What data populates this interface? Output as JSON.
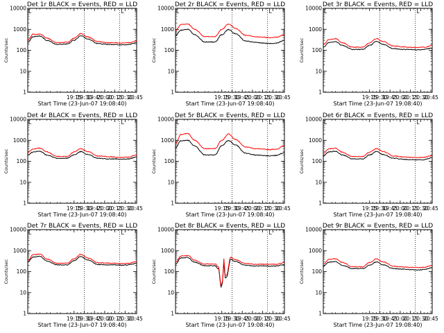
{
  "chart_data": [
    {
      "type": "line",
      "title": "Det 1r BLACK = Events, RED = LLD",
      "xlabel": "Start Time (23-Jun-07 19:08:40)",
      "ylabel": "Counts/sec",
      "yscale": "log",
      "ylim": [
        1,
        10000
      ],
      "xlim": [
        "18:07",
        "20:47"
      ],
      "xticks": [
        "19:15",
        "19:30",
        "19:45",
        "20:00",
        "20:15",
        "20:30",
        "20:45"
      ],
      "yticks": [
        "1",
        "10",
        "100",
        "1000",
        "10000"
      ],
      "vlines": [
        "19:30",
        "20:22"
      ],
      "annotations": [
        "L"
      ],
      "x": [
        "18:07",
        "18:15",
        "18:25",
        "18:35",
        "18:50",
        "19:05",
        "19:15",
        "19:25",
        "19:35",
        "19:50",
        "20:05",
        "20:15",
        "20:25",
        "20:35",
        "20:47"
      ],
      "series": [
        {
          "color": "#000000",
          "values": [
            240,
            450,
            480,
            300,
            190,
            200,
            300,
            490,
            350,
            210,
            190,
            190,
            180,
            190,
            230
          ]
        },
        {
          "color": "#ff0000",
          "values": [
            300,
            580,
            600,
            380,
            230,
            240,
            380,
            620,
            440,
            260,
            230,
            230,
            220,
            230,
            280
          ]
        }
      ]
    },
    {
      "type": "line",
      "title": "Det 2r BLACK = Events, RED = LLD",
      "xlabel": "Start Time (23-Jun-07 19:08:40)",
      "ylabel": "Counts/sec",
      "yscale": "log",
      "ylim": [
        1,
        10000
      ],
      "xlim": [
        "18:07",
        "20:47"
      ],
      "xticks": [
        "19:15",
        "19:30",
        "19:45",
        "20:00",
        "20:15",
        "20:30",
        "20:45"
      ],
      "yticks": [
        "1",
        "10",
        "100",
        "1000",
        "10000"
      ],
      "vlines": [
        "19:30",
        "20:22"
      ],
      "annotations": [
        "L"
      ],
      "x": [
        "18:07",
        "18:15",
        "18:25",
        "18:35",
        "18:50",
        "19:05",
        "19:15",
        "19:25",
        "19:35",
        "19:50",
        "20:05",
        "20:15",
        "20:25",
        "20:35",
        "20:47"
      ],
      "series": [
        {
          "color": "#000000",
          "values": [
            500,
            900,
            1000,
            560,
            250,
            250,
            560,
            980,
            620,
            280,
            240,
            220,
            210,
            220,
            300
          ]
        },
        {
          "color": "#ff0000",
          "values": [
            850,
            1700,
            1800,
            1000,
            450,
            450,
            1000,
            1800,
            1100,
            520,
            440,
            420,
            400,
            420,
            560
          ]
        }
      ]
    },
    {
      "type": "line",
      "title": "Det 3r BLACK = Events, RED = LLD",
      "xlabel": "Start Time (23-Jun-07 19:08:40)",
      "ylabel": "Counts/sec",
      "yscale": "log",
      "ylim": [
        1,
        10000
      ],
      "xlim": [
        "18:07",
        "20:47"
      ],
      "xticks": [
        "19:15",
        "19:30",
        "19:45",
        "20:00",
        "20:15",
        "20:30",
        "20:45"
      ],
      "yticks": [
        "1",
        "10",
        "100",
        "1000",
        "10000"
      ],
      "vlines": [
        "19:30",
        "20:22"
      ],
      "annotations": [
        "L"
      ],
      "x": [
        "18:07",
        "18:15",
        "18:25",
        "18:35",
        "18:50",
        "19:05",
        "19:15",
        "19:25",
        "19:35",
        "19:50",
        "20:05",
        "20:15",
        "20:25",
        "20:35",
        "20:47"
      ],
      "series": [
        {
          "color": "#000000",
          "values": [
            140,
            230,
            260,
            170,
            110,
            110,
            170,
            260,
            190,
            120,
            110,
            110,
            105,
            110,
            130
          ]
        },
        {
          "color": "#ff0000",
          "values": [
            190,
            320,
            360,
            230,
            140,
            140,
            230,
            360,
            260,
            160,
            145,
            140,
            135,
            140,
            170
          ]
        }
      ]
    },
    {
      "type": "line",
      "title": "Det 4r BLACK = Events, RED = LLD",
      "xlabel": "Start Time (23-Jun-07 19:08:40)",
      "ylabel": "Counts/sec",
      "yscale": "log",
      "ylim": [
        1,
        10000
      ],
      "xlim": [
        "18:07",
        "20:47"
      ],
      "xticks": [
        "19:15",
        "19:30",
        "19:45",
        "20:00",
        "20:15",
        "20:30",
        "20:45"
      ],
      "yticks": [
        "1",
        "10",
        "100",
        "1000",
        "10000"
      ],
      "vlines": [
        "19:30",
        "20:22"
      ],
      "annotations": [
        "L"
      ],
      "x": [
        "18:07",
        "18:15",
        "18:25",
        "18:35",
        "18:50",
        "19:05",
        "19:15",
        "19:25",
        "19:35",
        "19:50",
        "20:05",
        "20:15",
        "20:25",
        "20:35",
        "20:47"
      ],
      "series": [
        {
          "color": "#000000",
          "values": [
            200,
            280,
            300,
            200,
            140,
            140,
            200,
            290,
            210,
            140,
            130,
            130,
            125,
            130,
            160
          ]
        },
        {
          "color": "#ff0000",
          "values": [
            260,
            390,
            420,
            280,
            170,
            170,
            280,
            400,
            290,
            180,
            165,
            160,
            155,
            160,
            200
          ]
        }
      ]
    },
    {
      "type": "line",
      "title": "Det 5r BLACK = Events, RED = LLD",
      "xlabel": "Start Time (23-Jun-07 19:08:40)",
      "ylabel": "Counts/sec",
      "yscale": "log",
      "ylim": [
        1,
        10000
      ],
      "xlim": [
        "18:07",
        "20:47"
      ],
      "xticks": [
        "19:15",
        "19:30",
        "19:45",
        "20:00",
        "20:15",
        "20:30",
        "20:45"
      ],
      "yticks": [
        "1",
        "10",
        "100",
        "1000",
        "10000"
      ],
      "vlines": [
        "19:30",
        "20:22"
      ],
      "annotations": [
        "L"
      ],
      "x": [
        "18:07",
        "18:15",
        "18:25",
        "18:35",
        "18:50",
        "19:05",
        "19:15",
        "19:25",
        "19:35",
        "19:50",
        "20:05",
        "20:15",
        "20:25",
        "20:35",
        "20:47"
      ],
      "series": [
        {
          "color": "#000000",
          "values": [
            450,
            950,
            1000,
            550,
            200,
            200,
            550,
            980,
            600,
            240,
            200,
            190,
            180,
            190,
            260
          ]
        },
        {
          "color": "#ff0000",
          "values": [
            700,
            1900,
            2100,
            1000,
            400,
            400,
            1000,
            2000,
            1100,
            480,
            400,
            380,
            360,
            380,
            560
          ]
        }
      ]
    },
    {
      "type": "line",
      "title": "Det 6r BLACK = Events, RED = LLD",
      "xlabel": "Start Time (23-Jun-07 19:08:40)",
      "ylabel": "Counts/sec",
      "yscale": "log",
      "ylim": [
        1,
        10000
      ],
      "xlim": [
        "18:07",
        "20:47"
      ],
      "xticks": [
        "19:15",
        "19:30",
        "19:45",
        "20:00",
        "20:15",
        "20:30",
        "20:45"
      ],
      "yticks": [
        "1",
        "10",
        "100",
        "1000",
        "10000"
      ],
      "vlines": [
        "19:30",
        "20:22"
      ],
      "annotations": [
        "L"
      ],
      "x": [
        "18:07",
        "18:15",
        "18:25",
        "18:35",
        "18:50",
        "19:05",
        "19:15",
        "19:25",
        "19:35",
        "19:50",
        "20:05",
        "20:15",
        "20:25",
        "20:35",
        "20:47"
      ],
      "series": [
        {
          "color": "#000000",
          "values": [
            180,
            280,
            300,
            200,
            130,
            130,
            200,
            290,
            210,
            140,
            125,
            120,
            118,
            120,
            150
          ]
        },
        {
          "color": "#ff0000",
          "values": [
            240,
            390,
            420,
            270,
            170,
            170,
            270,
            400,
            290,
            180,
            160,
            155,
            150,
            155,
            190
          ]
        }
      ]
    },
    {
      "type": "line",
      "title": "Det 7r BLACK = Events, RED = LLD",
      "xlabel": "Start Time (23-Jun-07 19:08:40)",
      "ylabel": "Counts/sec",
      "yscale": "log",
      "ylim": [
        1,
        10000
      ],
      "xlim": [
        "18:07",
        "20:47"
      ],
      "xticks": [
        "19:15",
        "19:30",
        "19:45",
        "20:00",
        "20:15",
        "20:30",
        "20:45"
      ],
      "yticks": [
        "1",
        "10",
        "100",
        "1000",
        "10000"
      ],
      "vlines": [
        "19:30",
        "20:22"
      ],
      "annotations": [
        "L"
      ],
      "x": [
        "18:07",
        "18:15",
        "18:25",
        "18:35",
        "18:50",
        "19:05",
        "19:15",
        "19:25",
        "19:35",
        "19:50",
        "20:05",
        "20:15",
        "20:25",
        "20:35",
        "20:47"
      ],
      "series": [
        {
          "color": "#000000",
          "values": [
            280,
            500,
            530,
            320,
            210,
            210,
            330,
            520,
            360,
            220,
            210,
            210,
            200,
            210,
            250
          ]
        },
        {
          "color": "#ff0000",
          "values": [
            340,
            640,
            680,
            400,
            250,
            250,
            410,
            660,
            450,
            270,
            255,
            250,
            240,
            250,
            300
          ]
        }
      ]
    },
    {
      "type": "line",
      "title": "Det 8r BLACK = Events, RED = LLD",
      "xlabel": "Start Time (23-Jun-07 19:08:40)",
      "ylabel": "Counts/sec",
      "yscale": "log",
      "ylim": [
        1,
        10000
      ],
      "xlim": [
        "18:07",
        "20:47"
      ],
      "xticks": [
        "19:15",
        "19:30",
        "19:45",
        "20:00",
        "20:15",
        "20:30",
        "20:45"
      ],
      "yticks": [
        "1",
        "10",
        "100",
        "1000",
        "10000"
      ],
      "vlines": [
        "19:30",
        "20:22"
      ],
      "annotations": [
        "L"
      ],
      "x": [
        "18:07",
        "18:15",
        "18:25",
        "18:35",
        "18:50",
        "19:05",
        "19:10",
        "19:14",
        "19:16",
        "19:18",
        "19:20",
        "19:22",
        "19:28",
        "19:35",
        "19:50",
        "20:05",
        "20:15",
        "20:25",
        "20:35",
        "20:47"
      ],
      "series": [
        {
          "color": "#000000",
          "values": [
            230,
            450,
            470,
            280,
            190,
            190,
            140,
            18,
            30,
            280,
            50,
            55,
            380,
            300,
            200,
            185,
            185,
            180,
            185,
            220
          ]
        },
        {
          "color": "#ff0000",
          "values": [
            280,
            560,
            590,
            350,
            230,
            230,
            170,
            22,
            36,
            420,
            65,
            70,
            480,
            370,
            240,
            225,
            225,
            220,
            225,
            270
          ]
        }
      ]
    },
    {
      "type": "line",
      "title": "Det 9r BLACK = Events, RED = LLD",
      "xlabel": "Start Time (23-Jun-07 19:08:40)",
      "ylabel": "Counts/sec",
      "yscale": "log",
      "ylim": [
        1,
        10000
      ],
      "xlim": [
        "18:07",
        "20:47"
      ],
      "xticks": [
        "19:15",
        "19:30",
        "19:45",
        "20:00",
        "20:15",
        "20:30",
        "20:45"
      ],
      "yticks": [
        "1",
        "10",
        "100",
        "1000",
        "10000"
      ],
      "vlines": [
        "19:30",
        "20:22"
      ],
      "annotations": [
        "L"
      ],
      "x": [
        "18:07",
        "18:15",
        "18:25",
        "18:35",
        "18:50",
        "19:05",
        "19:15",
        "19:25",
        "19:35",
        "19:50",
        "20:05",
        "20:15",
        "20:25",
        "20:35",
        "20:47"
      ],
      "series": [
        {
          "color": "#000000",
          "values": [
            180,
            280,
            300,
            200,
            140,
            140,
            200,
            290,
            210,
            140,
            130,
            125,
            120,
            125,
            155
          ]
        },
        {
          "color": "#ff0000",
          "values": [
            230,
            380,
            410,
            270,
            170,
            170,
            270,
            400,
            290,
            180,
            165,
            160,
            155,
            160,
            200
          ]
        }
      ]
    }
  ]
}
